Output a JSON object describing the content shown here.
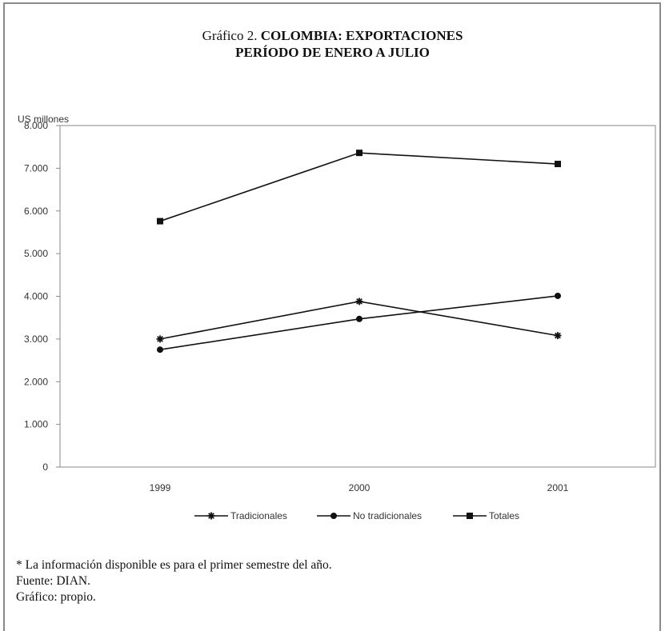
{
  "title_prefix": "Gráfico 2.",
  "title_line1_bold": "COLOMBIA: EXPORTACIONES",
  "title_line2": "PERÍODO DE ENERO A JULIO",
  "chart_data": {
    "type": "line",
    "ylabel": "US millones",
    "ylim": [
      0,
      8000
    ],
    "yticks": [
      "0",
      "1.000",
      "2.000",
      "3.000",
      "4.000",
      "5.000",
      "6.000",
      "7.000",
      "8.000"
    ],
    "ytick_values": [
      0,
      1000,
      2000,
      3000,
      4000,
      5000,
      6000,
      7000,
      8000
    ],
    "categories": [
      "1999",
      "2000",
      "2001"
    ],
    "series": [
      {
        "name": "Tradicionales",
        "marker": "asterisk",
        "values": [
          3000,
          3880,
          3080
        ]
      },
      {
        "name": "No tradicionales",
        "marker": "circle",
        "values": [
          2750,
          3470,
          4010
        ]
      },
      {
        "name": "Totales",
        "marker": "square",
        "values": [
          5760,
          7360,
          7100
        ]
      }
    ],
    "legend_position": "bottom",
    "grid": false
  },
  "notes": [
    "* La información disponible es para el primer semestre del año.",
    "Fuente: DIAN.",
    "Gráfico: propio."
  ]
}
